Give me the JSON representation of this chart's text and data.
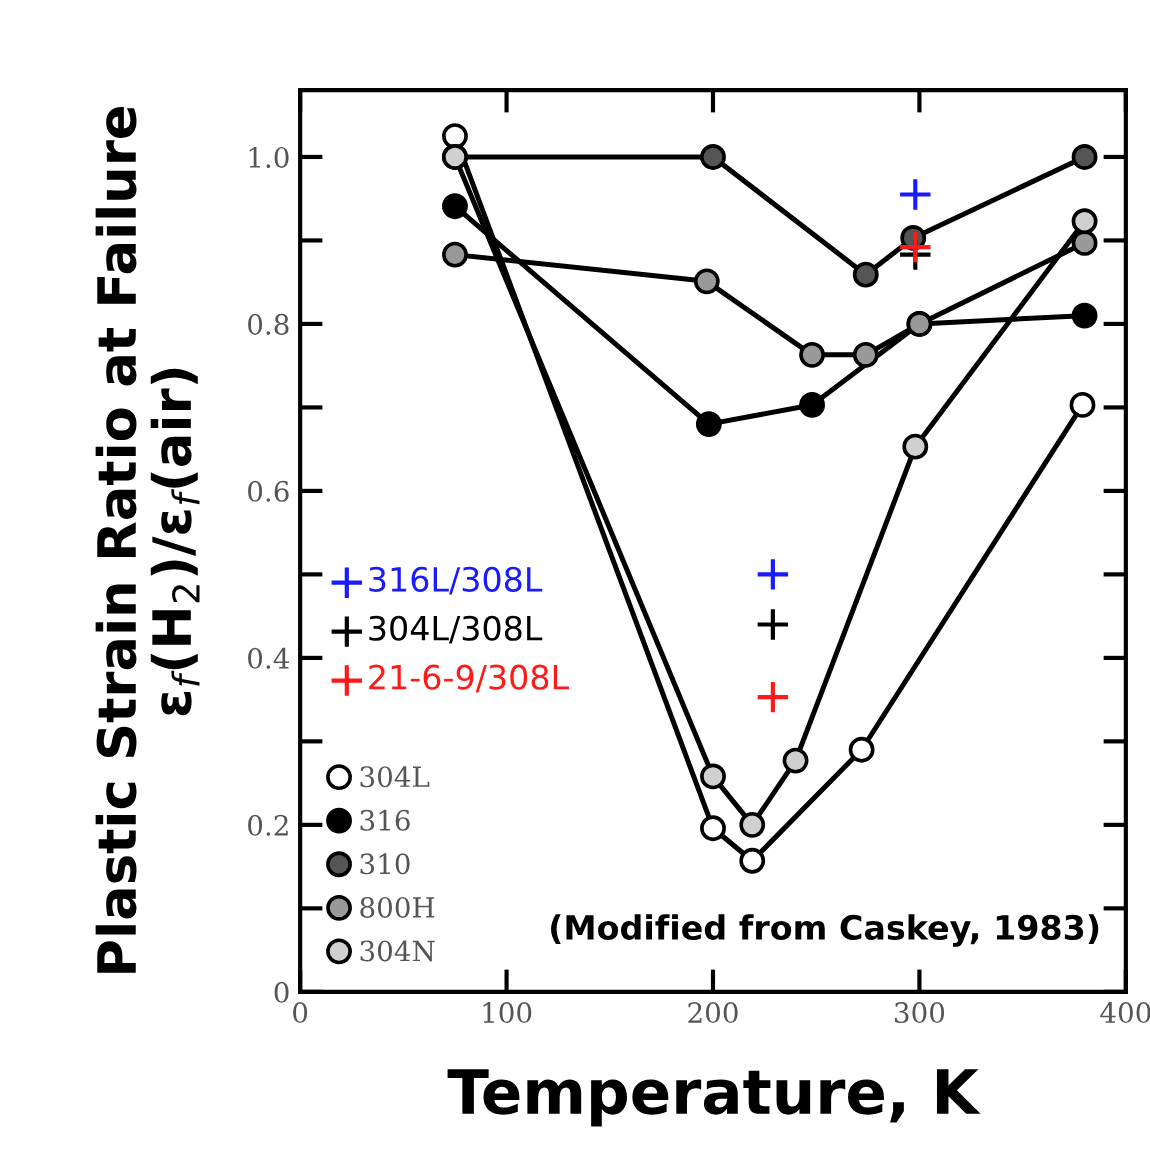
{
  "chart_data": {
    "type": "line",
    "xlabel": "Temperature, K",
    "ylabel": "Plastic Strain Ratio at Failure\nε$_{f}$(H$_{2}$)/ε$_{f}$(air)",
    "xlim": [
      0,
      400
    ],
    "ylim": [
      0,
      1.08
    ],
    "xticks": [
      0,
      100,
      200,
      300,
      400
    ],
    "yticks": [
      0,
      {
        "value": 0.1,
        "label": null
      },
      0.2,
      {
        "value": 0.3,
        "label": null
      },
      0.4,
      {
        "value": 0.5,
        "label": null
      },
      0.6,
      {
        "value": 0.7,
        "label": null
      },
      0.8,
      {
        "value": 0.9,
        "label": null
      },
      {
        "value": 1.0,
        "label": "1.0"
      }
    ],
    "grid": false,
    "legend": "left",
    "marker": "circle",
    "line_style": "solid",
    "annotations": [
      "(Modified from Caskey, 1983)"
    ],
    "series": [
      {
        "name": "304L",
        "color": "#000000",
        "colors": [
          "#ffffff",
          "#ffffff",
          "#ffffff",
          "#ffffff",
          "#ffffff"
        ],
        "x": [
          75,
          200,
          219,
          272,
          379
        ],
        "values": [
          1.025,
          0.196,
          0.157,
          0.29,
          0.703
        ]
      },
      {
        "name": "316",
        "color": "#000000",
        "colors": [
          "#000000",
          "#000000",
          "#000000",
          "#000000",
          "#000000"
        ],
        "x": [
          75,
          198,
          248,
          300,
          380
        ],
        "values": [
          0.941,
          0.68,
          0.703,
          0.8,
          0.81
        ]
      },
      {
        "name": "310",
        "color": "#000000",
        "colors": [
          "#555555",
          "#555555",
          "#555555",
          "#555555",
          "#555555"
        ],
        "x": [
          75,
          200,
          274,
          297,
          380
        ],
        "values": [
          1.0,
          1.0,
          0.859,
          0.903,
          1.0
        ]
      },
      {
        "name": "800H",
        "color": "#000000",
        "colors": [
          "#999999",
          "#999999",
          "#999999",
          "#999999",
          "#999999",
          "#999999"
        ],
        "x": [
          75,
          197,
          248,
          274,
          300,
          380
        ],
        "values": [
          0.883,
          0.851,
          0.763,
          0.763,
          0.8,
          0.897
        ]
      },
      {
        "name": "304N",
        "color": "#000000",
        "colors": [
          "#d0d0d0",
          "#d0d0d0",
          "#d0d0d0",
          "#d0d0d0",
          "#d0d0d0",
          "#d0d0d0"
        ],
        "x": [
          75,
          200,
          219,
          240,
          298,
          380
        ],
        "values": [
          1.0,
          0.258,
          0.2,
          0.277,
          0.653,
          0.923
        ]
      },
      {
        "name": "316L/308L",
        "type": "scatter",
        "marker": "cross",
        "color": "#1a1aff",
        "x": [
          229,
          298
        ],
        "values": [
          0.5,
          0.955
        ]
      },
      {
        "name": "304L/308L",
        "type": "scatter",
        "marker": "cross",
        "color": "#000000",
        "x": [
          229,
          298
        ],
        "values": [
          0.44,
          0.883
        ]
      },
      {
        "name": "21-6-9/308L",
        "type": "scatter",
        "marker": "cross",
        "color": "#ff1a1a",
        "x": [
          229,
          298
        ],
        "values": [
          0.353,
          0.892
        ]
      }
    ]
  }
}
